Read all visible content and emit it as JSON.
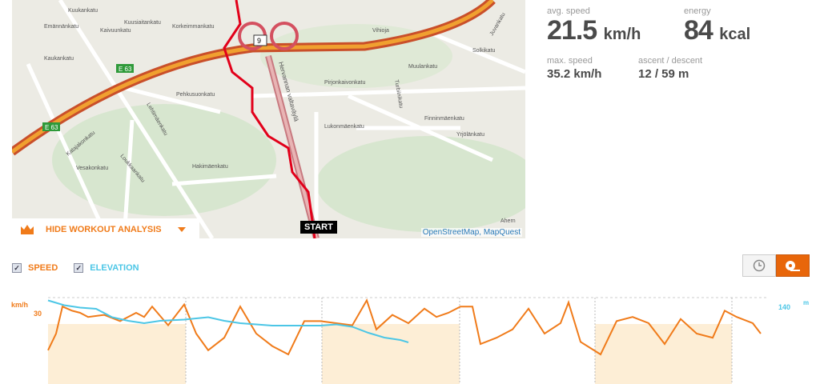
{
  "map": {
    "attribution": "OpenStreetMap, MapQuest",
    "start_label": "START",
    "road_badges": [
      "E 63",
      "E 63",
      "9"
    ],
    "labels": [
      "Kuukankatu",
      "Emännänkatu",
      "Kaivuunkatu",
      "Kuusiaitankatu",
      "Korkeimmankatu",
      "Kaukankatu",
      "Vihioja",
      "Hervannan valtaväylä",
      "Pirjonkaivonkatu",
      "Turbiinikatu",
      "Muulankatu",
      "Finninmäenkatu",
      "Lukonmäenkatu",
      "Pehkusuonkatu",
      "Lehtimäenkatu",
      "Katajakonkatu",
      "Vesakonkatu",
      "Loukkaankatu",
      "Hakimäenkatu",
      "Yrjölänkatu",
      "Solkikatu",
      "Juvankatu",
      "Ahern"
    ]
  },
  "hide_analysis": {
    "label": "HIDE WORKOUT ANALYSIS",
    "icon": "crown-chart-icon"
  },
  "stats": {
    "avg_speed": {
      "label": "avg. speed",
      "value": "21.5",
      "unit": "km/h"
    },
    "energy": {
      "label": "energy",
      "value": "84",
      "unit": "kcal"
    },
    "max_speed": {
      "label": "max. speed",
      "value": "35.2",
      "unit": "km/h"
    },
    "ascent_descent": {
      "label": "ascent / descent",
      "value": "12 / 59",
      "unit": "m"
    }
  },
  "legend": {
    "speed": "SPEED",
    "elevation": "ELEVATION",
    "speed_checked": true,
    "elevation_checked": true
  },
  "toggle": {
    "time_icon": "clock-icon",
    "distance_icon": "measuring-tape-icon",
    "active": "distance"
  },
  "colors": {
    "accent": "#f07b1a",
    "elevation": "#4cc6e6",
    "route": "#e2001a",
    "band": "#fdeed6"
  },
  "chart_data": {
    "type": "line",
    "left_axis_unit": "km/h",
    "right_axis_unit": "m",
    "left_ticks": [
      30
    ],
    "right_ticks": [
      140
    ],
    "series": [
      {
        "name": "SPEED",
        "axis": "left",
        "x": [
          0,
          10,
          18,
          30,
          40,
          50,
          70,
          90,
          110,
          120,
          130,
          150,
          170,
          185,
          200,
          220,
          240,
          260,
          280,
          300,
          320,
          340,
          360,
          380,
          398,
          410,
          430,
          450,
          470,
          485,
          500,
          515,
          530,
          540,
          560,
          580,
          600,
          620,
          640,
          650,
          665,
          690,
          710,
          730,
          750,
          770,
          790,
          810,
          830,
          845,
          860,
          880,
          890
        ],
        "values": [
          12,
          20,
          33,
          31,
          30,
          28,
          29,
          26,
          30,
          28,
          33,
          24,
          34,
          20,
          12,
          18,
          33,
          20,
          14,
          10,
          26,
          26,
          25,
          24,
          36,
          22,
          29,
          25,
          32,
          28,
          30,
          33,
          33,
          15,
          18,
          22,
          32,
          20,
          25,
          35,
          16,
          10,
          26,
          28,
          25,
          15,
          27,
          20,
          18,
          31,
          28,
          25,
          20
        ]
      },
      {
        "name": "ELEVATION",
        "axis": "right",
        "x": [
          0,
          20,
          40,
          60,
          80,
          100,
          120,
          140,
          170,
          200,
          220,
          240,
          280,
          300,
          340,
          360,
          380,
          400,
          420,
          440,
          450
        ],
        "values": [
          145,
          141,
          139,
          138,
          131,
          128,
          126,
          128,
          129,
          131,
          128,
          126,
          124,
          124,
          124,
          125,
          123,
          118,
          114,
          112,
          110
        ]
      }
    ]
  }
}
